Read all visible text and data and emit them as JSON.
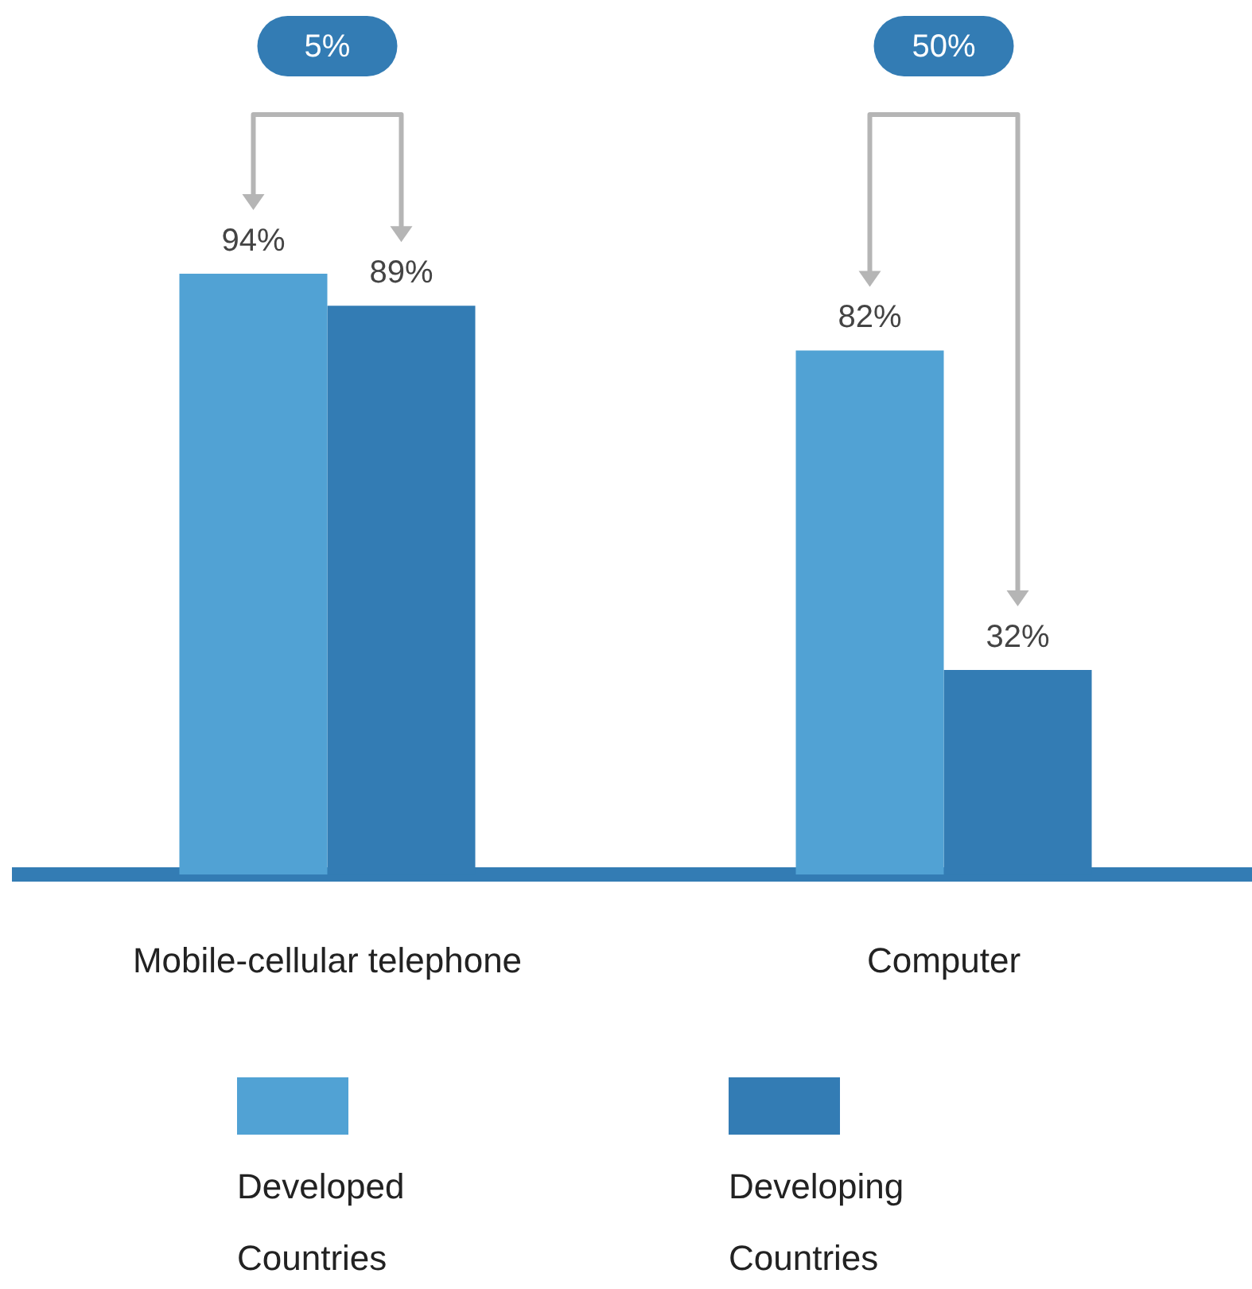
{
  "chart_data": {
    "type": "bar",
    "categories": [
      "Mobile-cellular telephone",
      "Computer"
    ],
    "series": [
      {
        "name": "Developed Countries",
        "color": "#51a2d4",
        "values": [
          94,
          82
        ],
        "value_labels": [
          "94%",
          "82%"
        ]
      },
      {
        "name": "Developing Countries",
        "color": "#337cb4",
        "values": [
          89,
          32
        ],
        "value_labels": [
          "89%",
          "32%"
        ]
      }
    ],
    "annotations": [
      "5%",
      "50%"
    ],
    "legend": "bottom",
    "grid": false
  }
}
